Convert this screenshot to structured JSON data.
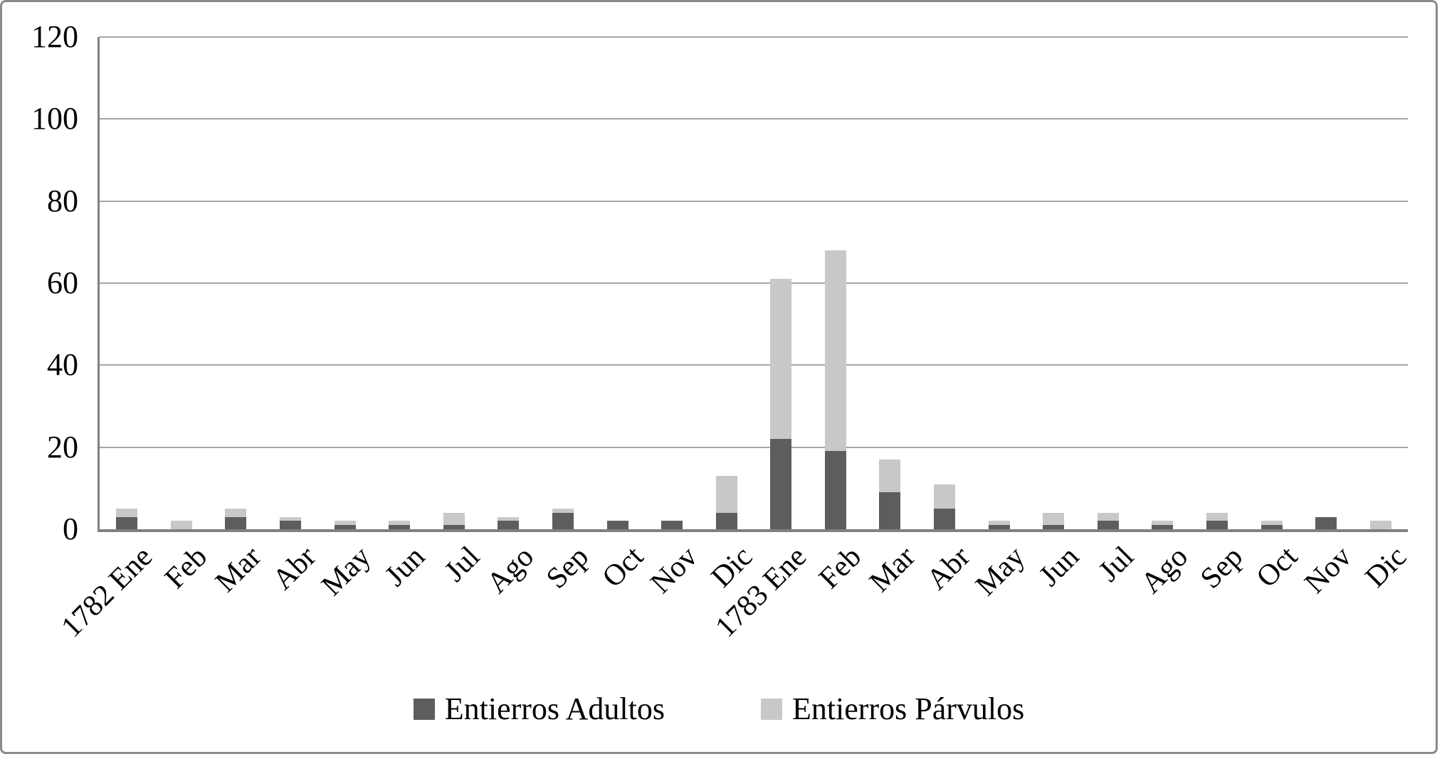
{
  "chart_data": {
    "type": "bar",
    "stacked": true,
    "title": "",
    "xlabel": "",
    "ylabel": "",
    "categories": [
      "1782 Ene",
      "Feb",
      "Mar",
      "Abr",
      "May",
      "Jun",
      "Jul",
      "Ago",
      "Sep",
      "Oct",
      "Nov",
      "Dic",
      "1783 Ene",
      "Feb",
      "Mar",
      "Abr",
      "May",
      "Jun",
      "Jul",
      "Ago",
      "Sep",
      "Oct",
      "Nov",
      "Dic"
    ],
    "series": [
      {
        "name": "Entierros Adultos",
        "color": "#5d5d5d",
        "values": [
          3,
          0,
          3,
          2,
          1,
          1,
          1,
          2,
          4,
          2,
          2,
          4,
          22,
          19,
          9,
          5,
          1,
          1,
          2,
          1,
          2,
          1,
          3,
          0
        ]
      },
      {
        "name": "Entierros Párvulos",
        "color": "#c8c8c8",
        "values": [
          2,
          2,
          2,
          1,
          1,
          1,
          3,
          1,
          1,
          0,
          0,
          9,
          39,
          49,
          8,
          6,
          1,
          3,
          2,
          1,
          2,
          1,
          0,
          2
        ]
      }
    ],
    "ylim": [
      0,
      120
    ],
    "yticks": [
      0,
      20,
      40,
      60,
      80,
      100,
      120
    ],
    "grid": true,
    "gridline_color": "#a6a6a6",
    "axis_color": "#808080",
    "legend_position": "bottom"
  },
  "legend": {
    "items": [
      {
        "label": "Entierros Adultos",
        "color": "#5d5d5d"
      },
      {
        "label": "Entierros Párvulos",
        "color": "#c8c8c8"
      }
    ]
  }
}
